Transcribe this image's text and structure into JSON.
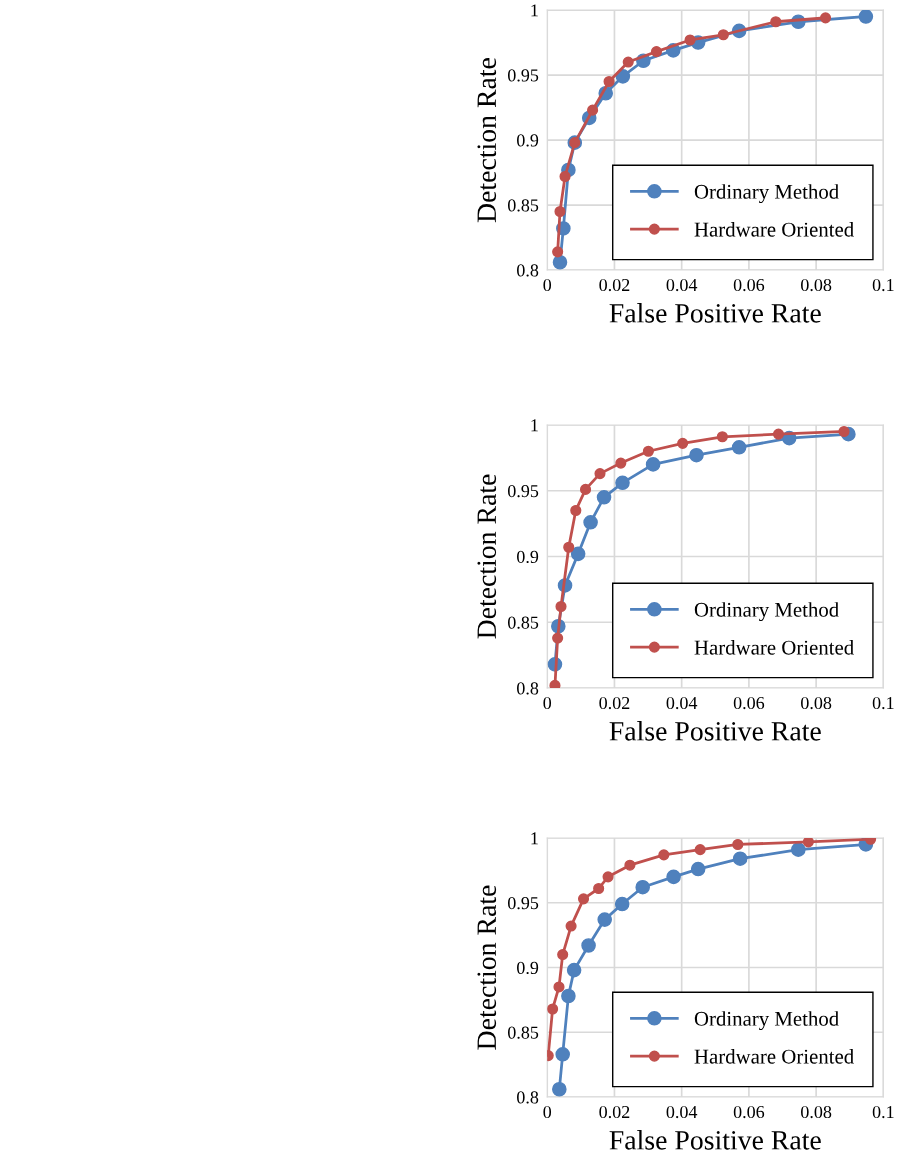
{
  "chart_data": [
    {
      "type": "line",
      "xlabel": "False Positive Rate",
      "ylabel": "Detection Rate",
      "xlim": [
        0,
        0.1
      ],
      "ylim": [
        0.8,
        1
      ],
      "xticks": [
        0,
        0.02,
        0.04,
        0.06,
        0.08,
        0.1
      ],
      "yticks": [
        0.8,
        0.85,
        0.9,
        0.95,
        1
      ],
      "grid": true,
      "legend": "bottom right",
      "marker": "circle",
      "line_style": "solid",
      "series": [
        {
          "name": "Ordinary Method",
          "color": "#4f81bd",
          "x": [
            0.0038,
            0.0048,
            0.0063,
            0.0082,
            0.0125,
            0.0174,
            0.0225,
            0.0286,
            0.0375,
            0.0449,
            0.0571,
            0.0747,
            0.0948
          ],
          "values": [
            0.806,
            0.832,
            0.877,
            0.898,
            0.917,
            0.936,
            0.949,
            0.961,
            0.969,
            0.975,
            0.984,
            0.991,
            0.995
          ]
        },
        {
          "name": "Hardware Oriented",
          "color": "#c0504d",
          "x": [
            0.0031,
            0.0038,
            0.0053,
            0.0082,
            0.0135,
            0.0184,
            0.0241,
            0.0325,
            0.0425,
            0.0524,
            0.068,
            0.0828
          ],
          "values": [
            0.814,
            0.845,
            0.872,
            0.898,
            0.923,
            0.945,
            0.96,
            0.968,
            0.977,
            0.981,
            0.991,
            0.994
          ]
        }
      ]
    },
    {
      "type": "line",
      "xlabel": "False Positive Rate",
      "ylabel": "Detection Rate",
      "xlim": [
        0,
        0.1
      ],
      "ylim": [
        0.8,
        1
      ],
      "xticks": [
        0,
        0.02,
        0.04,
        0.06,
        0.08,
        0.1
      ],
      "yticks": [
        0.8,
        0.85,
        0.9,
        0.95,
        1
      ],
      "grid": true,
      "legend": "bottom right",
      "marker": "circle",
      "line_style": "solid",
      "series": [
        {
          "name": "Ordinary Method",
          "color": "#4f81bd",
          "x": [
            0.0023,
            0.0033,
            0.0053,
            0.0092,
            0.0129,
            0.0169,
            0.0224,
            0.0315,
            0.0444,
            0.0571,
            0.072,
            0.0896
          ],
          "values": [
            0.818,
            0.847,
            0.878,
            0.902,
            0.926,
            0.945,
            0.956,
            0.97,
            0.977,
            0.983,
            0.99,
            0.993
          ]
        },
        {
          "name": "Hardware Oriented",
          "color": "#c0504d",
          "x": [
            0.0023,
            0.0031,
            0.0041,
            0.0064,
            0.0085,
            0.0114,
            0.0157,
            0.0219,
            0.0301,
            0.0403,
            0.0521,
            0.0688,
            0.0883
          ],
          "values": [
            0.802,
            0.838,
            0.862,
            0.907,
            0.935,
            0.951,
            0.963,
            0.971,
            0.98,
            0.986,
            0.991,
            0.993,
            0.995
          ]
        }
      ]
    },
    {
      "type": "line",
      "xlabel": "False Positive Rate",
      "ylabel": "Detection Rate",
      "xlim": [
        0,
        0.1
      ],
      "ylim": [
        0.8,
        1
      ],
      "xticks": [
        0,
        0.02,
        0.04,
        0.06,
        0.08,
        0.1
      ],
      "yticks": [
        0.8,
        0.85,
        0.9,
        0.95,
        1
      ],
      "grid": true,
      "legend": "bottom right",
      "marker": "circle",
      "line_style": "solid",
      "series": [
        {
          "name": "Ordinary Method",
          "color": "#4f81bd",
          "x": [
            0.0036,
            0.0046,
            0.0063,
            0.008,
            0.0123,
            0.0171,
            0.0223,
            0.0284,
            0.0376,
            0.0449,
            0.0574,
            0.0747,
            0.0948
          ],
          "values": [
            0.806,
            0.833,
            0.878,
            0.898,
            0.917,
            0.937,
            0.949,
            0.962,
            0.97,
            0.976,
            0.984,
            0.991,
            0.995
          ]
        },
        {
          "name": "Hardware Oriented",
          "color": "#c0504d",
          "x": [
            0.0003,
            0.0016,
            0.0035,
            0.0046,
            0.0071,
            0.0108,
            0.0153,
            0.0181,
            0.0246,
            0.0347,
            0.0455,
            0.0567,
            0.0777,
            0.0962
          ],
          "values": [
            0.832,
            0.868,
            0.885,
            0.91,
            0.932,
            0.953,
            0.961,
            0.97,
            0.979,
            0.987,
            0.991,
            0.995,
            0.997,
            0.999
          ]
        }
      ]
    }
  ]
}
